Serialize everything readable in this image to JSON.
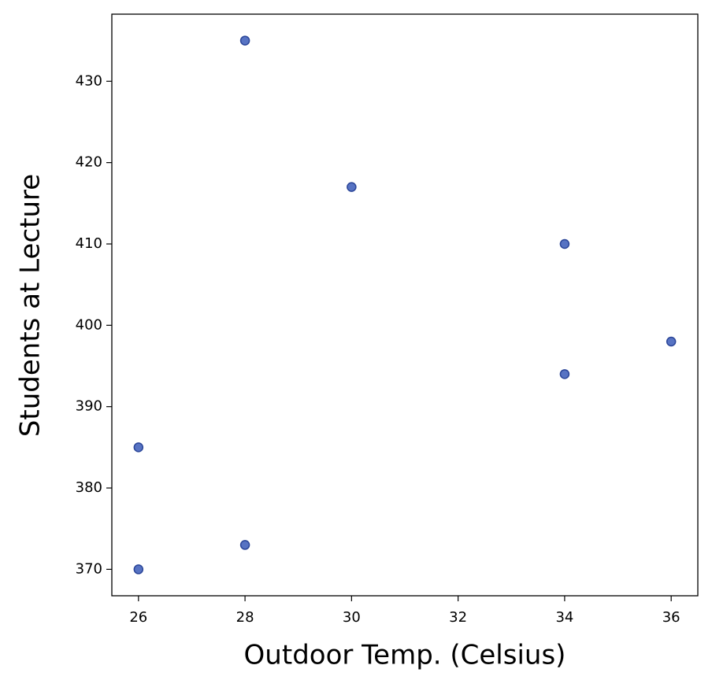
{
  "chart_data": {
    "type": "scatter",
    "x_label": "Outdoor Temp. (Celsius)",
    "y_label": "Students at Lecture",
    "x": [
      28,
      30,
      34,
      36,
      34,
      26,
      28,
      26
    ],
    "values": [
      435,
      417,
      410,
      398,
      394,
      385,
      373,
      370
    ],
    "color": "#3a5bb8",
    "xlim": [
      25.5,
      36.5
    ],
    "xticks": [
      26,
      28,
      30,
      32,
      34,
      36
    ],
    "ylim": [
      366.75,
      438.25
    ],
    "yticks": [
      370,
      380,
      390,
      400,
      410,
      420,
      430
    ],
    "grid": false
  }
}
